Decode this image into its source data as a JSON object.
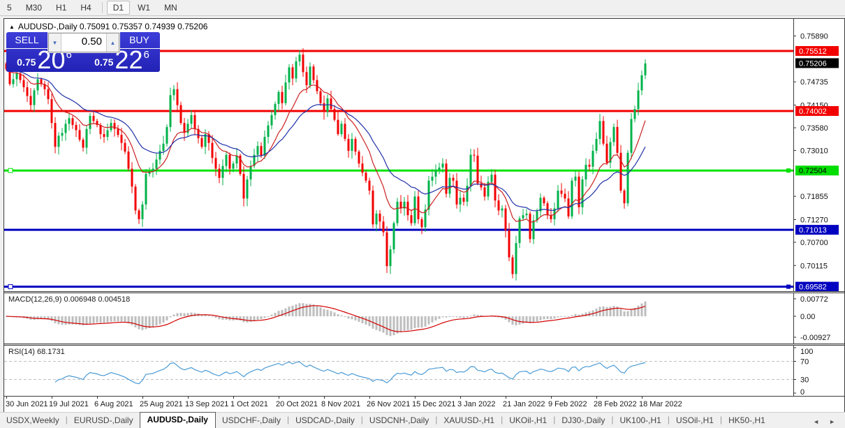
{
  "toolbar": {
    "periods": [
      {
        "label": "5",
        "active": false
      },
      {
        "label": "M30",
        "active": false
      },
      {
        "label": "H1",
        "active": false
      },
      {
        "label": "H4",
        "active": false
      },
      {
        "label": "D1",
        "active": true
      },
      {
        "label": "W1",
        "active": false
      },
      {
        "label": "MN",
        "active": false
      }
    ]
  },
  "chart": {
    "collapse_arrow": "▲",
    "title": "AUDUSD-,Daily 0.75091 0.75357 0.74939 0.75206"
  },
  "trade_panel": {
    "sell_label": "SELL",
    "buy_label": "BUY",
    "volume": "0.50",
    "down_arrow": "▼",
    "up_arrow": "▲",
    "sell_price": {
      "prefix": "0.75",
      "big": "20",
      "sup": "6"
    },
    "buy_price": {
      "prefix": "0.75",
      "big": "22",
      "sup": "6"
    }
  },
  "indicators": {
    "macd_label": "MACD(12,26,9) 0.006948 0.004518",
    "rsi_label": "RSI(14) 68.1731"
  },
  "chart_data": {
    "type": "candlestick",
    "symbol": "AUDUSD-,Daily",
    "ohlc_display": {
      "open": "0.75091",
      "high": "0.75357",
      "low": "0.74939",
      "close": "0.75206"
    },
    "x_labels": [
      "30 Jun 2021",
      "19 Jul 2021",
      "6 Aug 2021",
      "25 Aug 2021",
      "13 Sep 2021",
      "1 Oct 2021",
      "20 Oct 2021",
      "8 Nov 2021",
      "26 Nov 2021",
      "15 Dec 2021",
      "3 Jan 2022",
      "21 Jan 2022",
      "9 Feb 2022",
      "28 Feb 2022",
      "18 Mar 2022"
    ],
    "x_label_step": 13,
    "price_axis_ticks": [
      0.7589,
      0.74735,
      0.7415,
      0.7358,
      0.7301,
      0.71855,
      0.7127,
      0.707,
      0.70115
    ],
    "current_price": {
      "value": "0.75206",
      "price": 0.75206,
      "bg": "#000000",
      "fg": "#ffffff"
    },
    "hlines": [
      {
        "label": "0.75512",
        "price": 0.75512,
        "color": "#f20000",
        "labelbg": "#f20000",
        "labelfg": "#ffffff",
        "width": 3,
        "handles": false
      },
      {
        "label": "0.74002",
        "price": 0.74002,
        "color": "#f20000",
        "labelbg": "#f20000",
        "labelfg": "#ffffff",
        "width": 3,
        "handles": false
      },
      {
        "label": "0.72504",
        "price": 0.72504,
        "color": "#00e400",
        "labelbg": "#00dd00",
        "labelfg": "#000000",
        "width": 3,
        "handles": true
      },
      {
        "label": "0.71013",
        "price": 0.71013,
        "color": "#0000c0",
        "labelbg": "#0000c0",
        "labelfg": "#ffffff",
        "width": 3,
        "handles": false
      },
      {
        "label": "0.69582",
        "price": 0.69582,
        "color": "#0000c0",
        "labelbg": "#0000c0",
        "labelfg": "#ffffff",
        "width": 3,
        "handles": true
      }
    ],
    "candles": {
      "first_open": 0.752,
      "up_color": "#00b24a",
      "down_color": "#f30000",
      "closes": [
        0.7505,
        0.7468,
        0.748,
        0.7495,
        0.7478,
        0.746,
        0.7438,
        0.7415,
        0.7452,
        0.748,
        0.7468,
        0.7455,
        0.743,
        0.737,
        0.731,
        0.7338,
        0.7345,
        0.7368,
        0.7382,
        0.7365,
        0.7352,
        0.7328,
        0.7308,
        0.7355,
        0.7388,
        0.7375,
        0.7365,
        0.7342,
        0.7335,
        0.7352,
        0.737,
        0.7355,
        0.734,
        0.732,
        0.7298,
        0.7255,
        0.721,
        0.715,
        0.7128,
        0.7165,
        0.7242,
        0.7248,
        0.7255,
        0.7278,
        0.73,
        0.7318,
        0.736,
        0.744,
        0.7455,
        0.7415,
        0.737,
        0.7345,
        0.7368,
        0.739,
        0.7355,
        0.7332,
        0.731,
        0.7342,
        0.732,
        0.7282,
        0.7255,
        0.7232,
        0.7262,
        0.729,
        0.7255,
        0.7268,
        0.7288,
        0.7242,
        0.718,
        0.7228,
        0.7262,
        0.729,
        0.7312,
        0.7288,
        0.7335,
        0.7364,
        0.739,
        0.7418,
        0.7448,
        0.742,
        0.7472,
        0.751,
        0.7482,
        0.7525,
        0.7542,
        0.7498,
        0.7465,
        0.7512,
        0.7478,
        0.745,
        0.742,
        0.7398,
        0.7432,
        0.7405,
        0.7378,
        0.7342,
        0.7368,
        0.733,
        0.73,
        0.733,
        0.7298,
        0.7268,
        0.7245,
        0.7225,
        0.72,
        0.7115,
        0.7142,
        0.7122,
        0.7095,
        0.701,
        0.7052,
        0.7118,
        0.7172,
        0.7155,
        0.7172,
        0.7138,
        0.7118,
        0.7185,
        0.7128,
        0.7108,
        0.7152,
        0.7225,
        0.7235,
        0.7252,
        0.7258,
        0.7268,
        0.7192,
        0.7232,
        0.7225,
        0.7165,
        0.7182,
        0.7172,
        0.7212,
        0.729,
        0.7288,
        0.7218,
        0.7208,
        0.7185,
        0.7222,
        0.724,
        0.7175,
        0.715,
        0.7155,
        0.71,
        0.7032,
        0.699,
        0.7068,
        0.713,
        0.7138,
        0.7142,
        0.7078,
        0.7125,
        0.7148,
        0.7182,
        0.7168,
        0.7138,
        0.7128,
        0.7155,
        0.72,
        0.7192,
        0.718,
        0.7135,
        0.7225,
        0.7235,
        0.7158,
        0.7228,
        0.7265,
        0.726,
        0.73,
        0.733,
        0.7375,
        0.7318,
        0.727,
        0.7322,
        0.736,
        0.7295,
        0.72,
        0.7168,
        0.7295,
        0.738,
        0.7405,
        0.7452,
        0.749,
        0.752
      ]
    },
    "overlays": {
      "ma_fast": {
        "period": 12,
        "color": "#cc2020"
      },
      "ma_slow": {
        "period": 26,
        "color": "#2030a8"
      }
    },
    "macd": {
      "params": "12,26,9",
      "value": 0.006948,
      "signal_value": 0.004518,
      "axis_ticks": [
        0.00772,
        0.0,
        -0.00927
      ],
      "hist_color": "#bdbdbd",
      "signal_color": "#d40000"
    },
    "rsi": {
      "period": 14,
      "value": 68.1731,
      "axis_ticks": [
        100,
        70,
        30,
        0
      ],
      "levels": [
        70,
        30
      ],
      "color": "#4a9bd5",
      "level_color": "#c0c0c0"
    }
  },
  "tabs": {
    "items": [
      "USDX,Weekly",
      "EURUSD-,Daily",
      "AUDUSD-,Daily",
      "USDCHF-,Daily",
      "USDCAD-,Daily",
      "USDCNH-,Daily",
      "XAUUSD-,H1",
      "UKOil-,H1",
      "DJ30-,Daily",
      "UK100-,H1",
      "USOil-,H1",
      "HK50-,H1"
    ],
    "active_index": 2,
    "nav_left": "◄",
    "nav_right": "►"
  }
}
